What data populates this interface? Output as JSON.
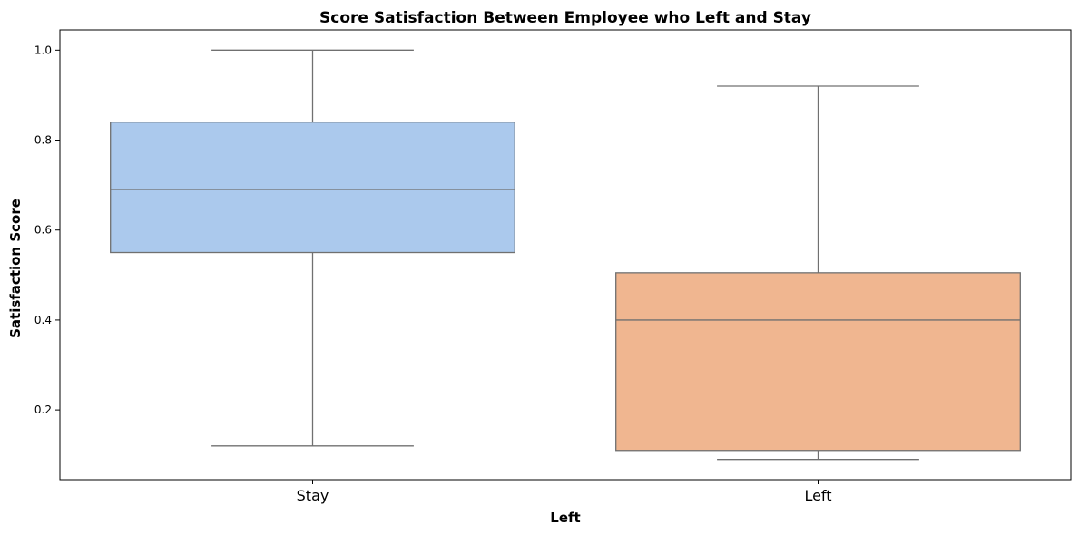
{
  "chart_data": {
    "type": "box",
    "title": "Score Satisfaction Between Employee who Left and Stay",
    "xlabel": "Left",
    "ylabel": "Satisfaction Score",
    "ylim": [
      0.045,
      1.045
    ],
    "yticks": [
      0.2,
      0.4,
      0.6,
      0.8,
      1.0
    ],
    "ytick_labels": [
      "0.2",
      "0.4",
      "0.6",
      "0.8",
      "1.0"
    ],
    "grid": false,
    "categories": [
      "Stay",
      "Left"
    ],
    "boxes": [
      {
        "label": "Stay",
        "whisker_low": 0.12,
        "q1": 0.55,
        "median": 0.69,
        "q3": 0.84,
        "whisker_high": 1.0,
        "color": "#abc9ed"
      },
      {
        "label": "Left",
        "whisker_low": 0.09,
        "q1": 0.11,
        "median": 0.4,
        "q3": 0.505,
        "whisker_high": 0.92,
        "color": "#f0b690"
      }
    ],
    "line_color": "#707070"
  }
}
